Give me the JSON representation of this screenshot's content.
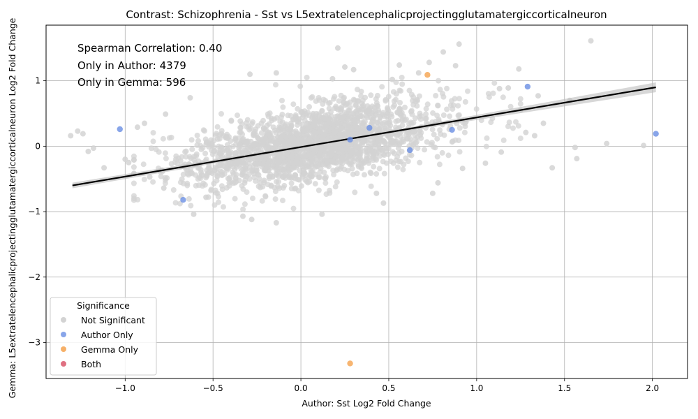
{
  "chart_data": {
    "type": "scatter",
    "title": "Contrast: Schizophrenia - Sst vs L5extratelencephalicprojectingglutamatergiccorticalneuron",
    "xlabel": "Author: Sst Log2 Fold Change",
    "ylabel": "Gemma: L5extratelencephalicprojectingglutamatergiccorticalneuron Log2 Fold Change",
    "xlim": [
      -1.45,
      2.2
    ],
    "ylim": [
      -3.55,
      1.85
    ],
    "xticks": [
      -1.0,
      -0.5,
      0.0,
      0.5,
      1.0,
      1.5,
      2.0
    ],
    "xtick_labels": [
      "−1.0",
      "−0.5",
      "0.0",
      "0.5",
      "1.0",
      "1.5",
      "2.0"
    ],
    "yticks": [
      -3,
      -2,
      -1,
      0,
      1
    ],
    "ytick_labels": [
      "−3",
      "−2",
      "−1",
      "0",
      "1"
    ],
    "grid": true,
    "annotations": [
      "Spearman Correlation: 0.40",
      "Only in Author: 4379",
      "Only in Gemma: 596"
    ],
    "legend": {
      "title": "Significance",
      "placement": "lower-left",
      "entries": [
        "Not Significant",
        "Author Only",
        "Gemma Only",
        "Both"
      ]
    },
    "colors": {
      "Not Significant": "#d3d3d3",
      "Author Only": "#6a8ee3",
      "Gemma Only": "#f5a24d",
      "Both": "#d9576b",
      "regression_line": "#000000"
    },
    "regression_line": {
      "x": [
        -1.3,
        2.02
      ],
      "y": [
        -0.6,
        0.9
      ]
    },
    "series": [
      {
        "name": "Author Only",
        "points": [
          {
            "x": -1.03,
            "y": 0.26
          },
          {
            "x": -0.67,
            "y": -0.82
          },
          {
            "x": 0.62,
            "y": -0.06
          },
          {
            "x": 0.86,
            "y": 0.25
          },
          {
            "x": 1.29,
            "y": 0.91
          },
          {
            "x": 2.02,
            "y": 0.19
          },
          {
            "x": 0.28,
            "y": 0.1
          },
          {
            "x": 0.39,
            "y": 0.28
          }
        ]
      },
      {
        "name": "Gemma Only",
        "points": [
          {
            "x": 0.72,
            "y": 1.09
          },
          {
            "x": 0.28,
            "y": -3.32
          }
        ]
      },
      {
        "name": "Both",
        "points": []
      },
      {
        "name": "Not Significant",
        "outliers": [
          {
            "x": -1.31,
            "y": 0.16
          },
          {
            "x": -1.27,
            "y": 0.23
          },
          {
            "x": -1.24,
            "y": 0.19
          },
          {
            "x": -1.21,
            "y": -0.08
          },
          {
            "x": -1.18,
            "y": -0.03
          },
          {
            "x": -1.12,
            "y": -0.33
          },
          {
            "x": -1.0,
            "y": -0.2
          },
          {
            "x": -0.98,
            "y": -0.25
          },
          {
            "x": -0.93,
            "y": 0.29
          },
          {
            "x": -0.89,
            "y": 0.35
          },
          {
            "x": -0.86,
            "y": -0.47
          },
          {
            "x": -0.78,
            "y": -0.64
          },
          {
            "x": -0.77,
            "y": 0.49
          },
          {
            "x": -0.63,
            "y": 0.74
          },
          {
            "x": -0.61,
            "y": -1.04
          },
          {
            "x": -0.54,
            "y": -0.78
          },
          {
            "x": -0.33,
            "y": -1.07
          },
          {
            "x": -0.29,
            "y": 1.1
          },
          {
            "x": -0.28,
            "y": -1.12
          },
          {
            "x": -0.14,
            "y": 1.12
          },
          {
            "x": -0.14,
            "y": -1.17
          },
          {
            "x": 0.12,
            "y": -1.04
          },
          {
            "x": 0.18,
            "y": 1.03
          },
          {
            "x": 0.21,
            "y": 1.5
          },
          {
            "x": 0.25,
            "y": 1.21
          },
          {
            "x": 0.3,
            "y": 1.17
          },
          {
            "x": 0.43,
            "y": -0.72
          },
          {
            "x": 0.47,
            "y": -0.87
          },
          {
            "x": 0.52,
            "y": 1.02
          },
          {
            "x": 0.56,
            "y": 1.24
          },
          {
            "x": 0.67,
            "y": 1.12
          },
          {
            "x": 0.73,
            "y": 1.28
          },
          {
            "x": 0.75,
            "y": -0.72
          },
          {
            "x": 0.78,
            "y": -0.56
          },
          {
            "x": 0.81,
            "y": 1.44
          },
          {
            "x": 0.88,
            "y": 1.23
          },
          {
            "x": 0.9,
            "y": 1.56
          },
          {
            "x": 0.92,
            "y": -0.34
          },
          {
            "x": 1.05,
            "y": -0.26
          },
          {
            "x": 1.13,
            "y": 0.88
          },
          {
            "x": 1.14,
            "y": -0.09
          },
          {
            "x": 1.18,
            "y": 0.89
          },
          {
            "x": 1.24,
            "y": 1.18
          },
          {
            "x": 1.28,
            "y": 0.21
          },
          {
            "x": 1.33,
            "y": 0.16
          },
          {
            "x": 1.35,
            "y": 0.77
          },
          {
            "x": 1.38,
            "y": 0.35
          },
          {
            "x": 1.43,
            "y": -0.33
          },
          {
            "x": 1.53,
            "y": 0.7
          },
          {
            "x": 1.56,
            "y": -0.02
          },
          {
            "x": 1.57,
            "y": -0.19
          },
          {
            "x": 1.65,
            "y": 1.61
          },
          {
            "x": 1.74,
            "y": 0.04
          },
          {
            "x": 1.95,
            "y": 0.01
          }
        ]
      }
    ]
  }
}
